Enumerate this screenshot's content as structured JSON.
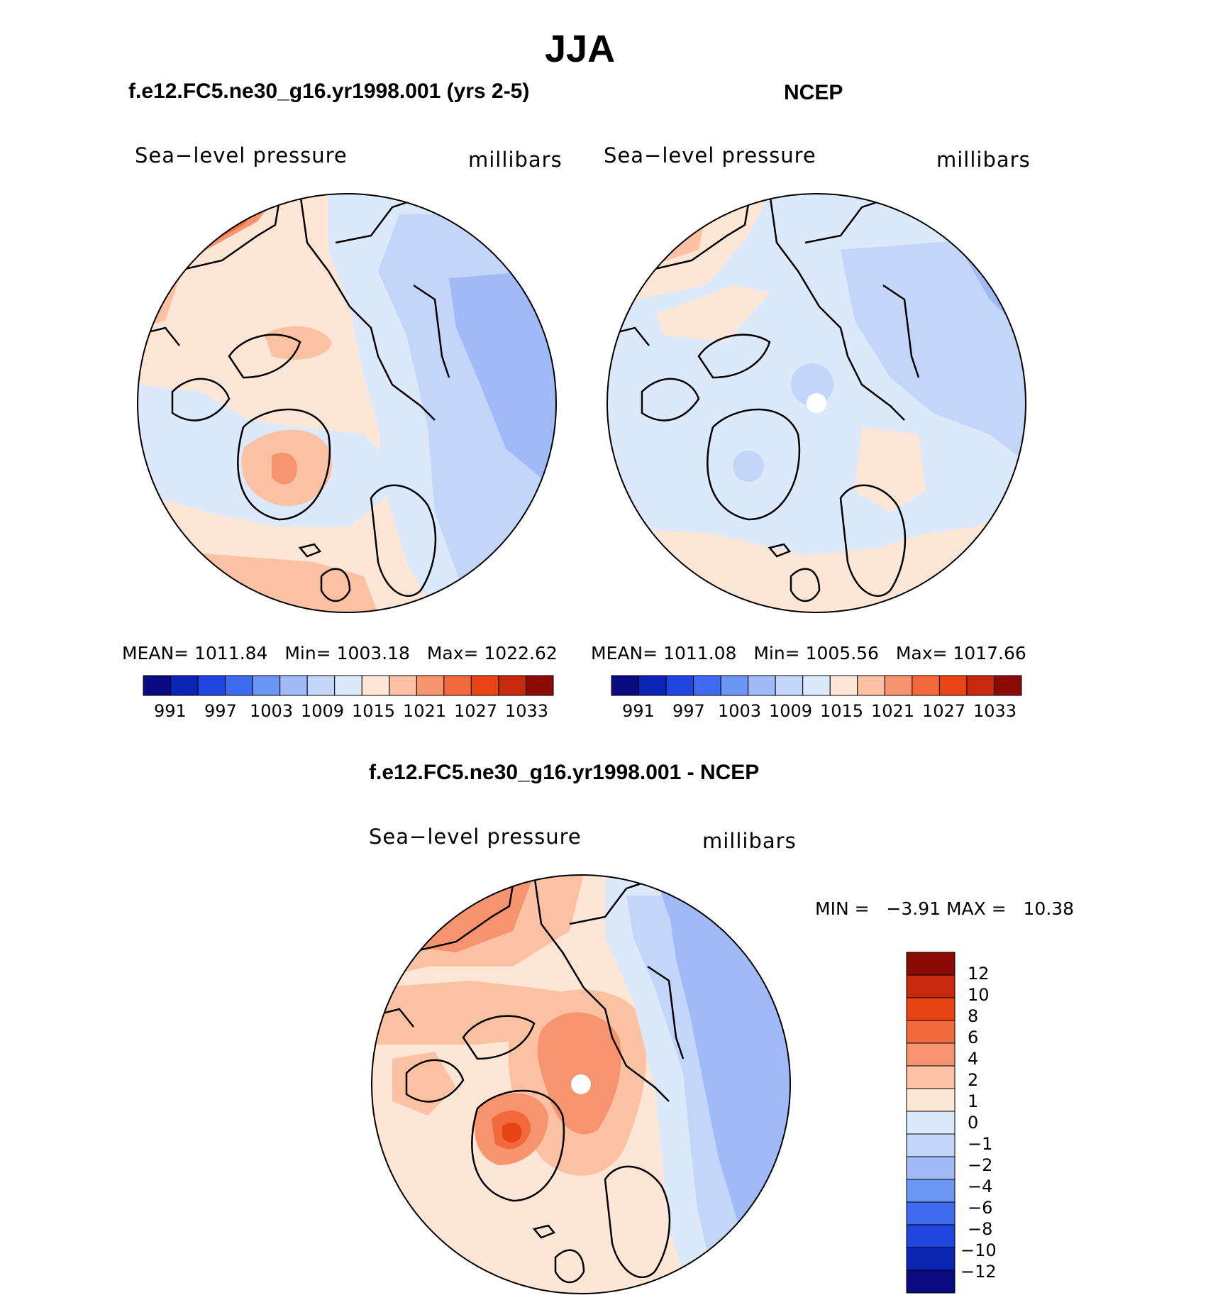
{
  "page": {
    "title": "JJA"
  },
  "palette": {
    "abs": [
      "#0a0a82",
      "#0b24b4",
      "#1f46e0",
      "#3f6bf0",
      "#6b96f5",
      "#9fbaf6",
      "#c3d6fa",
      "#dce9fb",
      "#fde6d6",
      "#fbc1a3",
      "#f79470",
      "#f26a3c",
      "#e74314",
      "#c52a0c",
      "#8a0c04"
    ],
    "diff": [
      "#0a0a82",
      "#0b24b4",
      "#1f46e0",
      "#3f6bf0",
      "#6b96f5",
      "#9fbaf6",
      "#c3d6fa",
      "#dce9fb",
      "#fde6d6",
      "#fbc1a3",
      "#f79470",
      "#f26a3c",
      "#e74314",
      "#c52a0c",
      "#8a0c04"
    ]
  },
  "panels": [
    {
      "title": "f.e12.FC5.ne30_g16.yr1998.001 (yrs 2-5)",
      "field_label": "Sea−level pressure",
      "units": "millibars",
      "stats": {
        "mean_label": "MEAN=",
        "mean": "1011.84",
        "min_label": "Min=",
        "min": "1003.18",
        "max_label": "Max=",
        "max": "1022.62"
      },
      "colorbar_ticks": [
        "991",
        "997",
        "1003",
        "1009",
        "1015",
        "1021",
        "1027",
        "1033"
      ]
    },
    {
      "title": "NCEP",
      "field_label": "Sea−level pressure",
      "units": "millibars",
      "stats": {
        "mean_label": "MEAN=",
        "mean": "1011.08",
        "min_label": "Min=",
        "min": "1005.56",
        "max_label": "Max=",
        "max": "1017.66"
      },
      "colorbar_ticks": [
        "991",
        "997",
        "1003",
        "1009",
        "1015",
        "1021",
        "1027",
        "1033"
      ]
    },
    {
      "title": "f.e12.FC5.ne30_g16.yr1998.001 - NCEP",
      "field_label": "Sea−level pressure",
      "units": "millibars",
      "stats": {
        "min_label": "MIN =",
        "min": "−3.91",
        "max_label": "MAX =",
        "max": "10.38"
      },
      "colorbar_ticks": [
        "12",
        "10",
        "8",
        "6",
        "4",
        "2",
        "1",
        "0",
        "−1",
        "−2",
        "−4",
        "−6",
        "−8",
        "−10",
        "−12"
      ]
    }
  ]
}
